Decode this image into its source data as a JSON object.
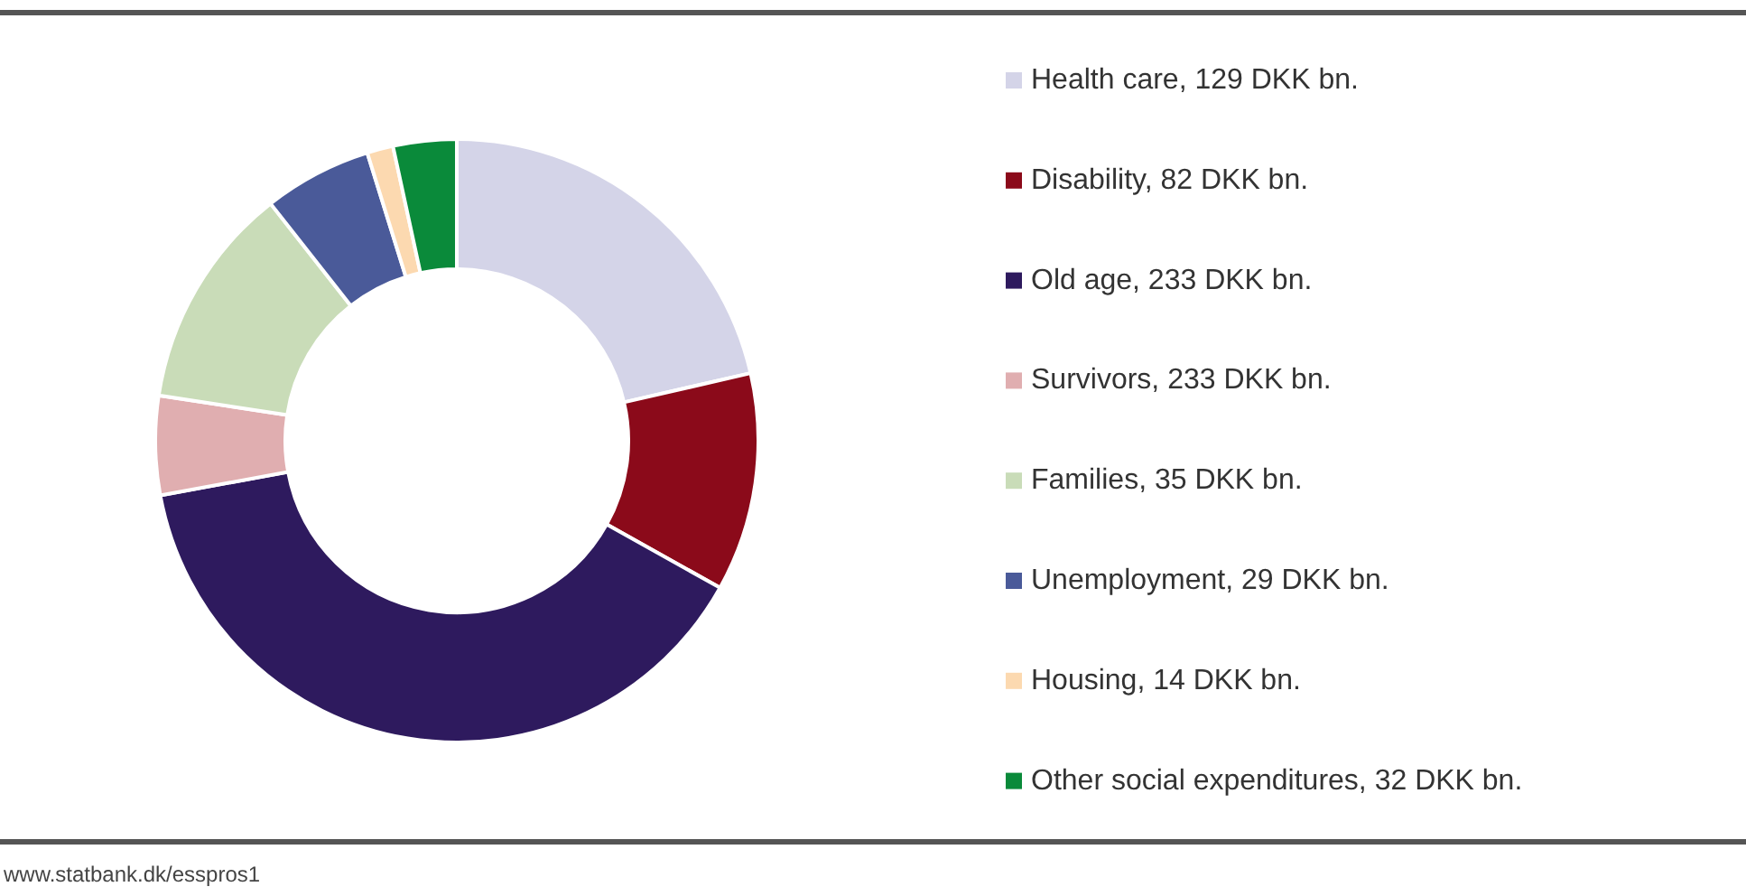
{
  "chart_data": {
    "type": "donut",
    "categories": [
      "Health care, 129 DKK bn.",
      "Disability, 82 DKK bn.",
      "Old age, 233 DKK bn.",
      "Survivors, 233 DKK bn.",
      "Families, 35 DKK bn.",
      "Unemployment, 29 DKK bn.",
      "Housing, 14 DKK bn.",
      "Other social expenditures, 32 DKK bn."
    ],
    "values": [
      21.4,
      11.7,
      39.0,
      5.3,
      12.0,
      5.8,
      1.4,
      3.4
    ],
    "colors": [
      "#d4d4e8",
      "#8b0a1a",
      "#2e1a5e",
      "#e0aeb0",
      "#c9dcb8",
      "#4a5a99",
      "#fcd9b0",
      "#0a8a3a"
    ],
    "legend": "right",
    "annotations": [
      "www.statbank.dk/esspros1"
    ]
  }
}
